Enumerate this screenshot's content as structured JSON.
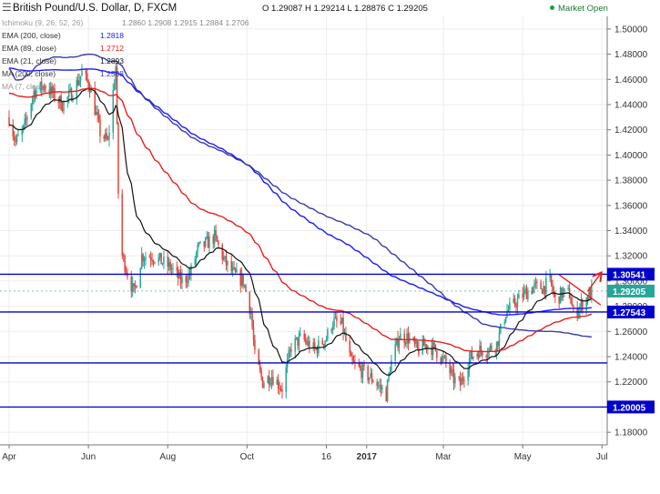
{
  "header": {
    "symbol_title": "British Pound/U.S. Dollar, D, FXCM",
    "ohlc": [
      {
        "key": "O",
        "value": "1.29087"
      },
      {
        "key": "H",
        "value": "1.29214"
      },
      {
        "key": "L",
        "value": "1.28876"
      },
      {
        "key": "C",
        "value": "1.29205"
      }
    ],
    "market_status": "Market Open",
    "market_status_color": "#1e9e44"
  },
  "indicators": [
    {
      "label": "Ichimoku (9, 26, 52, 26)",
      "value": "1.2860  1.2908  1.2915  1.2884  1.2706",
      "color": "#888888"
    },
    {
      "label": "EMA (200, close)",
      "value": "1.2818",
      "color": "#1a1aff"
    },
    {
      "label": "EMA (89, close)",
      "value": "1.2712",
      "color": "#e8201e"
    },
    {
      "label": "EMA (21, close)",
      "value": "1.2893",
      "color": "#111111"
    },
    {
      "label": "MA (200, close)",
      "value": "1.2588",
      "color": "#3a3aa8"
    },
    {
      "label": "MA (7, close)",
      "value": "",
      "color": "#999999"
    }
  ],
  "chart_data": {
    "type": "candlestick",
    "title": "British Pound/U.S. Dollar, D, FXCM",
    "ylim": [
      1.17,
      1.51
    ],
    "y_ticks": [
      "1.50000",
      "1.48000",
      "1.46000",
      "1.44000",
      "1.42000",
      "1.40000",
      "1.38000",
      "1.36000",
      "1.34000",
      "1.32000",
      "1.30000",
      "1.28000",
      "1.26000",
      "1.24000",
      "1.22000",
      "1.20000",
      "1.18000"
    ],
    "x_ticks": [
      "Apr",
      "Jun",
      "Aug",
      "Oct",
      "16",
      "2017",
      "Mar",
      "May",
      "Jul"
    ],
    "x_range": [
      "2016-03-25",
      "2017-07-05"
    ],
    "grid": true,
    "up_color": "#26a69a",
    "down_color": "#e0453a",
    "horizontal_levels": [
      {
        "value": 1.30541,
        "label": "1.30541",
        "color": "#0000cc"
      },
      {
        "value": 1.27543,
        "label": "1.27543",
        "color": "#0000cc"
      },
      {
        "value": 1.235,
        "label": "",
        "color": "#0000cc"
      },
      {
        "value": 1.20005,
        "label": "1.20005",
        "color": "#0000cc"
      }
    ],
    "last_price": {
      "value": 1.29205,
      "label": "1.29205",
      "color": "#26a69a"
    },
    "price_anchors": [
      [
        "2016-04-01",
        1.43
      ],
      [
        "2016-04-06",
        1.41
      ],
      [
        "2016-04-12",
        1.42
      ],
      [
        "2016-04-20",
        1.45
      ],
      [
        "2016-04-28",
        1.455
      ],
      [
        "2016-05-05",
        1.448
      ],
      [
        "2016-05-12",
        1.44
      ],
      [
        "2016-05-20",
        1.45
      ],
      [
        "2016-05-27",
        1.465
      ],
      [
        "2016-06-02",
        1.455
      ],
      [
        "2016-06-10",
        1.418
      ],
      [
        "2016-06-16",
        1.41
      ],
      [
        "2016-06-22",
        1.47
      ],
      [
        "2016-06-24",
        1.37
      ],
      [
        "2016-06-27",
        1.32
      ],
      [
        "2016-07-06",
        1.29
      ],
      [
        "2016-07-12",
        1.32
      ],
      [
        "2016-07-20",
        1.32
      ],
      [
        "2016-07-28",
        1.315
      ],
      [
        "2016-08-04",
        1.31
      ],
      [
        "2016-08-11",
        1.3
      ],
      [
        "2016-08-18",
        1.305
      ],
      [
        "2016-08-24",
        1.325
      ],
      [
        "2016-08-31",
        1.33
      ],
      [
        "2016-09-06",
        1.335
      ],
      [
        "2016-09-14",
        1.315
      ],
      [
        "2016-09-21",
        1.305
      ],
      [
        "2016-09-28",
        1.3
      ],
      [
        "2016-10-04",
        1.275
      ],
      [
        "2016-10-07",
        1.24
      ],
      [
        "2016-10-13",
        1.22
      ],
      [
        "2016-10-20",
        1.225
      ],
      [
        "2016-10-28",
        1.215
      ],
      [
        "2016-11-04",
        1.248
      ],
      [
        "2016-11-12",
        1.255
      ],
      [
        "2016-11-22",
        1.245
      ],
      [
        "2016-12-01",
        1.255
      ],
      [
        "2016-12-06",
        1.268
      ],
      [
        "2016-12-13",
        1.265
      ],
      [
        "2016-12-20",
        1.235
      ],
      [
        "2016-12-29",
        1.228
      ],
      [
        "2017-01-06",
        1.222
      ],
      [
        "2017-01-16",
        1.21
      ],
      [
        "2017-01-19",
        1.232
      ],
      [
        "2017-01-26",
        1.256
      ],
      [
        "2017-02-02",
        1.255
      ],
      [
        "2017-02-09",
        1.245
      ],
      [
        "2017-02-16",
        1.25
      ],
      [
        "2017-02-23",
        1.245
      ],
      [
        "2017-03-02",
        1.236
      ],
      [
        "2017-03-09",
        1.222
      ],
      [
        "2017-03-14",
        1.218
      ],
      [
        "2017-03-21",
        1.238
      ],
      [
        "2017-03-28",
        1.245
      ],
      [
        "2017-04-04",
        1.245
      ],
      [
        "2017-04-11",
        1.25
      ],
      [
        "2017-04-18",
        1.275
      ],
      [
        "2017-04-25",
        1.282
      ],
      [
        "2017-05-02",
        1.29
      ],
      [
        "2017-05-09",
        1.295
      ],
      [
        "2017-05-17",
        1.295
      ],
      [
        "2017-05-22",
        1.3
      ],
      [
        "2017-05-26",
        1.285
      ],
      [
        "2017-05-31",
        1.29
      ],
      [
        "2017-06-06",
        1.29
      ],
      [
        "2017-06-09",
        1.274
      ],
      [
        "2017-06-16",
        1.282
      ],
      [
        "2017-06-23",
        1.292
      ]
    ],
    "moving_averages": [
      {
        "label": "EMA (21, close)",
        "period": 21,
        "kind": "ema",
        "color": "#111111"
      },
      {
        "label": "EMA (89, close)",
        "period": 89,
        "kind": "ema",
        "color": "#e8201e"
      },
      {
        "label": "EMA (200, close)",
        "period": 200,
        "kind": "ema",
        "color": "#1a1aff"
      },
      {
        "label": "MA (200, close)",
        "period": 200,
        "kind": "sma",
        "color": "#3a3aa8"
      }
    ],
    "annotations": [
      {
        "type": "trendline",
        "color": "#e8201e",
        "from": [
          "2017-05-29",
          1.305
        ],
        "to": [
          "2017-06-30",
          1.281
        ]
      },
      {
        "type": "arrow",
        "color": "#e8201e",
        "from": [
          "2017-06-20",
          1.292
        ],
        "to": [
          "2017-06-30",
          1.306
        ]
      }
    ]
  }
}
